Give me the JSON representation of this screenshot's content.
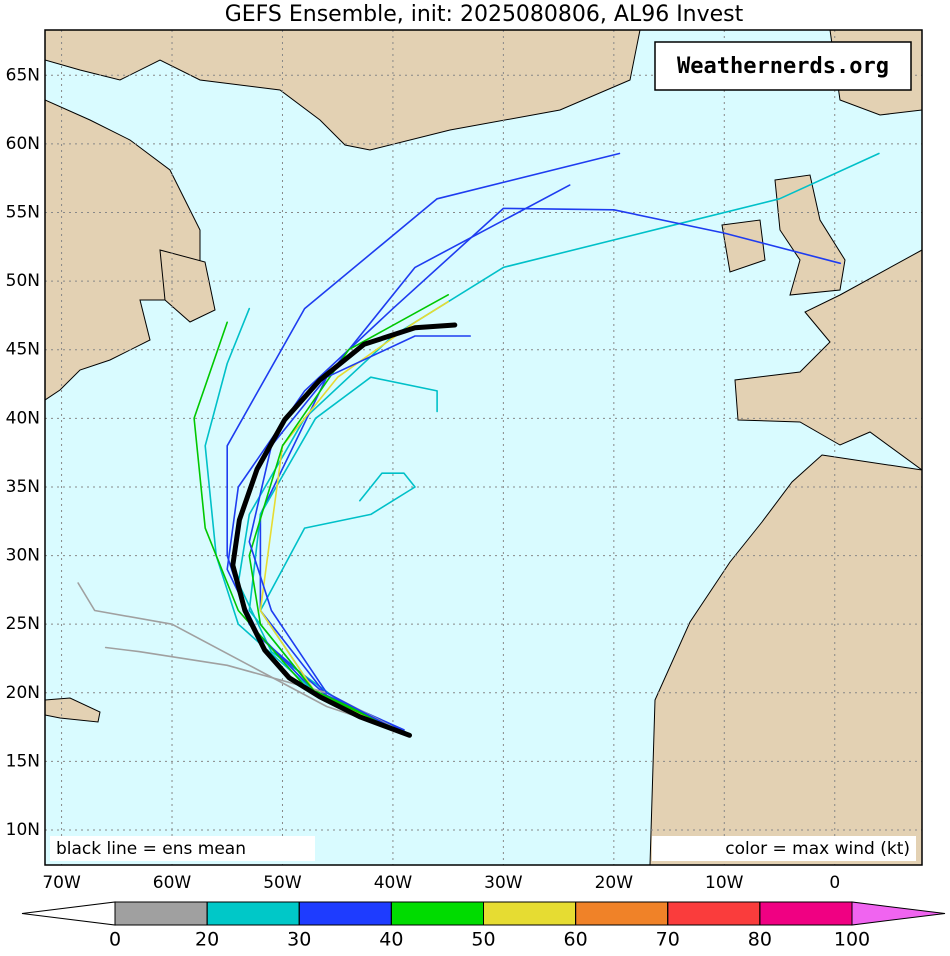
{
  "title": "GEFS Ensemble, init: 2025080806, AL96 Invest",
  "watermark": "Weathernerds.org",
  "notes": [
    "black line = ens mean",
    "color = max wind (kt)"
  ],
  "map": {
    "lonlim": [
      -71.5,
      7.9
    ],
    "latlim": [
      7.45,
      68.3
    ],
    "ocean_color": "#d9fbff",
    "land_color": "#e3d1b3",
    "lon_ticks": [
      {
        "value": -70,
        "label": "70W"
      },
      {
        "value": -60,
        "label": "60W"
      },
      {
        "value": -50,
        "label": "50W"
      },
      {
        "value": -40,
        "label": "40W"
      },
      {
        "value": -30,
        "label": "30W"
      },
      {
        "value": -20,
        "label": "20W"
      },
      {
        "value": -10,
        "label": "10W"
      },
      0
    ],
    "lat_ticks": [
      {
        "value": 65,
        "label": "65N"
      },
      {
        "value": 60,
        "label": "60N"
      },
      {
        "value": 55,
        "label": "55N"
      },
      {
        "value": 50,
        "label": "50N"
      },
      {
        "value": 45,
        "label": "45N"
      },
      {
        "value": 40,
        "label": "40N"
      },
      {
        "value": 35,
        "label": "35N"
      },
      {
        "value": 30,
        "label": "30N"
      },
      {
        "value": 25,
        "label": "25N"
      },
      {
        "value": 20,
        "label": "20N"
      },
      {
        "value": 15,
        "label": "15N"
      },
      {
        "value": 10,
        "label": "10N"
      }
    ]
  },
  "members": [
    {
      "color": "#00c0c8",
      "lon": [
        -38.5,
        -45,
        -51,
        -54,
        -53,
        -48,
        -40,
        -30,
        -15,
        -5,
        4
      ],
      "lat": [
        17,
        19.5,
        23,
        28,
        33,
        40,
        46,
        51,
        54,
        56,
        59.3
      ]
    },
    {
      "color": "#1e3cf0",
      "lon": [
        -38.5,
        -46,
        -52,
        -55,
        -54,
        -48,
        -40,
        -30,
        -20,
        -10,
        0.5
      ],
      "lat": [
        17,
        19.8,
        24,
        29,
        35,
        42,
        48,
        55.3,
        55.2,
        53.5,
        51.3
      ]
    },
    {
      "color": "#1e3cf0",
      "lon": [
        -39,
        -47,
        -53,
        -55,
        -55,
        -48,
        -36,
        -19.5
      ],
      "lat": [
        17.2,
        20,
        25,
        30,
        38,
        48,
        56,
        59.3
      ]
    },
    {
      "color": "#1e3cf0",
      "lon": [
        -39,
        -46,
        -52,
        -52,
        -46,
        -38,
        -24
      ],
      "lat": [
        17.3,
        19.8,
        26,
        33,
        43,
        51,
        57
      ]
    },
    {
      "color": "#00c0c8",
      "lon": [
        -39,
        -47,
        -54,
        -56,
        -57,
        -55,
        -53
      ],
      "lat": [
        17,
        20,
        25,
        30,
        38,
        44,
        48
      ]
    },
    {
      "color": "#00c800",
      "lon": [
        -40,
        -48,
        -54,
        -57,
        -58,
        -55
      ],
      "lat": [
        17.5,
        20.5,
        26,
        32,
        40,
        47
      ]
    },
    {
      "color": "#a0a0a0",
      "lon": [
        -38.5,
        -46,
        -53,
        -60,
        -67,
        -68.5
      ],
      "lat": [
        17,
        19,
        22,
        25,
        26,
        28
      ]
    },
    {
      "color": "#a0a0a0",
      "lon": [
        -40,
        -46,
        -55,
        -63,
        -66
      ],
      "lat": [
        17.5,
        20,
        22,
        23,
        23.3
      ]
    },
    {
      "color": "#00c0c8",
      "lon": [
        -39,
        -47,
        -52,
        -48,
        -42,
        -38,
        -39,
        -41,
        -43
      ],
      "lat": [
        17,
        20,
        26,
        32,
        33,
        35,
        36,
        36,
        34
      ]
    },
    {
      "color": "#00c0c8",
      "lon": [
        -39,
        -47,
        -53,
        -52,
        -47,
        -42,
        -36,
        -36
      ],
      "lat": [
        17,
        20,
        26,
        33,
        40,
        43,
        42,
        40.5
      ]
    },
    {
      "color": "#e6dc32",
      "lon": [
        -39,
        -47,
        -52,
        -51,
        -50,
        -45,
        -38,
        -35
      ],
      "lat": [
        17,
        20,
        26,
        32,
        38,
        43,
        47,
        48.5
      ]
    },
    {
      "color": "#00c800",
      "lon": [
        -39,
        -47,
        -52,
        -53,
        -50,
        -44,
        -35
      ],
      "lat": [
        17.1,
        20,
        25,
        30,
        38,
        45,
        49
      ]
    },
    {
      "color": "#1e3cf0",
      "lon": [
        -39,
        -46,
        -51,
        -53,
        -51,
        -46,
        -38,
        -33
      ],
      "lat": [
        17,
        20,
        26,
        31,
        38,
        43,
        46,
        46
      ]
    }
  ],
  "mean_track": {
    "color": "#000000",
    "lon": [
      -38.5,
      -43,
      -46.6,
      -49.4,
      -51.6,
      -53.4,
      -54.5,
      -53.9,
      -52.3,
      -49.8,
      -46.6,
      -42.6,
      -38,
      -34.4
    ],
    "lat": [
      16.9,
      18.25,
      19.7,
      21.1,
      23.1,
      26,
      29.3,
      32.6,
      36.3,
      39.9,
      42.8,
      45.4,
      46.6,
      46.8
    ]
  },
  "colorbar": {
    "ticks": [
      0,
      20,
      30,
      40,
      50,
      60,
      70,
      80,
      100
    ],
    "colors": [
      "#a0a0a0",
      "#00c8c8",
      "#1e3cff",
      "#00dc00",
      "#e6dc32",
      "#f08228",
      "#fa3c3c",
      "#f00082"
    ],
    "under_color": "#ffffff",
    "over_color": "#f064f0"
  }
}
